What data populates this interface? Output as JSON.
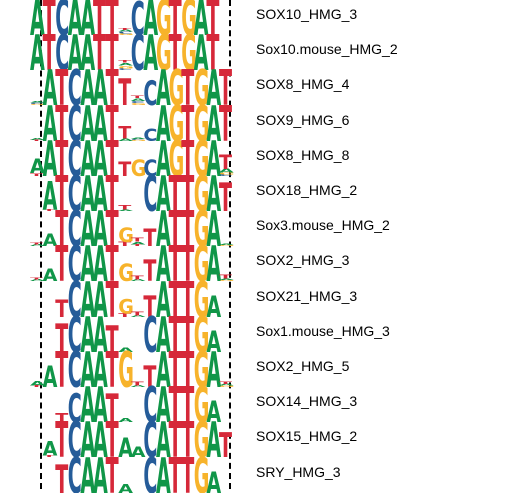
{
  "colors": {
    "A": "#109648",
    "C": "#255c99",
    "G": "#f7b32b",
    "T": "#d62839"
  },
  "motifs": [
    {
      "label": "SOX10_HMG_3",
      "logo": [
        [
          [
            "A",
            1.0
          ]
        ],
        [
          [
            "T",
            1.0
          ]
        ],
        [
          [
            "C",
            1.0
          ]
        ],
        [
          [
            "A",
            1.0
          ]
        ],
        [
          [
            "A",
            1.0
          ]
        ],
        [
          [
            "T",
            1.0
          ]
        ],
        [
          [
            "T",
            1.0
          ]
        ],
        [
          [
            "G",
            0.05
          ],
          [
            "C",
            0.05
          ],
          [
            "A",
            0.05
          ],
          [
            "T",
            0.05
          ]
        ],
        [
          [
            "C",
            0.95
          ]
        ],
        [
          [
            "A",
            1.0
          ]
        ],
        [
          [
            "G",
            1.0
          ]
        ],
        [
          [
            "T",
            1.0
          ]
        ],
        [
          [
            "G",
            1.0
          ]
        ],
        [
          [
            "A",
            1.0
          ]
        ],
        [
          [
            "T",
            1.0
          ]
        ],
        []
      ]
    },
    {
      "label": "Sox10.mouse_HMG_2",
      "logo": [
        [
          [
            "A",
            1.0
          ]
        ],
        [
          [
            "T",
            1.0
          ]
        ],
        [
          [
            "C",
            1.0
          ]
        ],
        [
          [
            "A",
            1.0
          ]
        ],
        [
          [
            "A",
            1.0
          ]
        ],
        [
          [
            "T",
            1.0
          ]
        ],
        [
          [
            "T",
            1.0
          ]
        ],
        [
          [
            "C",
            0.05
          ],
          [
            "G",
            0.08
          ],
          [
            "A",
            0.08
          ],
          [
            "T",
            0.08
          ]
        ],
        [
          [
            "C",
            1.0
          ]
        ],
        [
          [
            "A",
            1.0
          ]
        ],
        [
          [
            "G",
            1.0
          ]
        ],
        [
          [
            "T",
            1.0
          ]
        ],
        [
          [
            "G",
            1.0
          ]
        ],
        [
          [
            "A",
            1.0
          ]
        ],
        [
          [
            "T",
            1.0
          ]
        ],
        []
      ]
    },
    {
      "label": "SOX8_HMG_4",
      "logo": [
        [
          [
            "G",
            0.03
          ],
          [
            "C",
            0.04
          ],
          [
            "A",
            0.03
          ]
        ],
        [
          [
            "A",
            1.0
          ]
        ],
        [
          [
            "T",
            1.0
          ]
        ],
        [
          [
            "C",
            1.0
          ]
        ],
        [
          [
            "A",
            1.0
          ]
        ],
        [
          [
            "A",
            1.0
          ]
        ],
        [
          [
            "T",
            1.0
          ]
        ],
        [
          [
            "T",
            0.75
          ]
        ],
        [
          [
            "G",
            0.06
          ],
          [
            "C",
            0.06
          ],
          [
            "A",
            0.08
          ],
          [
            "T",
            0.08
          ]
        ],
        [
          [
            "C",
            0.7
          ]
        ],
        [
          [
            "A",
            1.0
          ]
        ],
        [
          [
            "G",
            1.0
          ]
        ],
        [
          [
            "T",
            1.0
          ]
        ],
        [
          [
            "G",
            1.0
          ]
        ],
        [
          [
            "A",
            1.0
          ]
        ],
        [
          [
            "T",
            1.0
          ]
        ]
      ]
    },
    {
      "label": "SOX9_HMG_6",
      "logo": [
        [
          [
            "T",
            0.03
          ],
          [
            "A",
            0.06
          ]
        ],
        [
          [
            "A",
            1.0
          ]
        ],
        [
          [
            "T",
            1.0
          ]
        ],
        [
          [
            "C",
            1.0
          ]
        ],
        [
          [
            "A",
            1.0
          ]
        ],
        [
          [
            "A",
            1.0
          ]
        ],
        [
          [
            "T",
            1.0
          ]
        ],
        [
          [
            "A",
            0.07
          ],
          [
            "T",
            0.35
          ]
        ],
        [
          [
            "G",
            0.03
          ],
          [
            "C",
            0.03
          ],
          [
            "A",
            0.03
          ]
        ],
        [
          [
            "C",
            0.35
          ]
        ],
        [
          [
            "A",
            1.0
          ]
        ],
        [
          [
            "G",
            1.0
          ]
        ],
        [
          [
            "T",
            1.0
          ]
        ],
        [
          [
            "G",
            1.0
          ]
        ],
        [
          [
            "A",
            1.0
          ]
        ],
        [
          [
            "T",
            1.0
          ]
        ]
      ]
    },
    {
      "label": "SOX8_HMG_8",
      "logo": [
        [
          [
            "T",
            0.08
          ],
          [
            "A",
            0.4
          ]
        ],
        [
          [
            "A",
            1.0
          ]
        ],
        [
          [
            "T",
            1.0
          ]
        ],
        [
          [
            "C",
            1.0
          ]
        ],
        [
          [
            "A",
            1.0
          ]
        ],
        [
          [
            "A",
            1.0
          ]
        ],
        [
          [
            "T",
            1.0
          ]
        ],
        [
          [
            "T",
            0.4
          ]
        ],
        [
          [
            "G",
            0.45
          ]
        ],
        [
          [
            "C",
            0.45
          ]
        ],
        [
          [
            "A",
            1.0
          ]
        ],
        [
          [
            "G",
            1.0
          ]
        ],
        [
          [
            "T",
            1.0
          ]
        ],
        [
          [
            "G",
            1.0
          ]
        ],
        [
          [
            "A",
            1.0
          ]
        ],
        [
          [
            "C",
            0.05
          ],
          [
            "G",
            0.05
          ],
          [
            "A",
            0.1
          ],
          [
            "T",
            0.4
          ]
        ]
      ]
    },
    {
      "label": "SOX18_HMG_2",
      "logo": [
        [],
        [
          [
            "T",
            0.05
          ],
          [
            "A",
            0.8
          ]
        ],
        [
          [
            "T",
            1.0
          ]
        ],
        [
          [
            "C",
            1.0
          ]
        ],
        [
          [
            "A",
            1.0
          ]
        ],
        [
          [
            "A",
            1.0
          ]
        ],
        [
          [
            "T",
            1.0
          ]
        ],
        [
          [
            "A",
            0.04
          ],
          [
            "T",
            0.12
          ]
        ],
        [],
        [
          [
            "C",
            1.0
          ]
        ],
        [
          [
            "A",
            1.0
          ]
        ],
        [
          [
            "T",
            1.0
          ]
        ],
        [
          [
            "T",
            1.0
          ]
        ],
        [
          [
            "G",
            1.0
          ]
        ],
        [
          [
            "A",
            1.0
          ]
        ],
        [
          [
            "T",
            0.8
          ]
        ]
      ]
    },
    {
      "label": "Sox3.mouse_HMG_2",
      "logo": [
        [
          [
            "A",
            0.05
          ],
          [
            "T",
            0.05
          ]
        ],
        [
          [
            "A",
            0.35
          ]
        ],
        [
          [
            "T",
            1.0
          ]
        ],
        [
          [
            "C",
            1.0
          ]
        ],
        [
          [
            "A",
            1.0
          ]
        ],
        [
          [
            "A",
            1.0
          ]
        ],
        [
          [
            "T",
            1.0
          ]
        ],
        [
          [
            "T",
            0.12
          ],
          [
            "G",
            0.4
          ]
        ],
        [
          [
            "T",
            0.05
          ],
          [
            "A",
            0.08
          ],
          [
            "T",
            0.1
          ]
        ],
        [
          [
            "T",
            0.5
          ]
        ],
        [
          [
            "A",
            1.0
          ]
        ],
        [
          [
            "T",
            1.0
          ]
        ],
        [
          [
            "T",
            1.0
          ]
        ],
        [
          [
            "G",
            1.0
          ]
        ],
        [
          [
            "A",
            1.0
          ]
        ],
        [
          [
            "G",
            0.03
          ],
          [
            "A",
            0.03
          ]
        ]
      ]
    },
    {
      "label": "SOX2_HMG_3",
      "logo": [
        [
          [
            "A",
            0.05
          ],
          [
            "T",
            0.05
          ]
        ],
        [
          [
            "A",
            0.35
          ]
        ],
        [
          [
            "T",
            1.0
          ]
        ],
        [
          [
            "C",
            1.0
          ]
        ],
        [
          [
            "A",
            1.0
          ]
        ],
        [
          [
            "A",
            1.0
          ]
        ],
        [
          [
            "T",
            1.0
          ]
        ],
        [
          [
            "G",
            0.5
          ]
        ],
        [
          [
            "A",
            0.05
          ],
          [
            "T",
            0.1
          ]
        ],
        [
          [
            "T",
            0.6
          ]
        ],
        [
          [
            "A",
            1.0
          ]
        ],
        [
          [
            "T",
            1.0
          ]
        ],
        [
          [
            "T",
            1.0
          ]
        ],
        [
          [
            "G",
            1.0
          ]
        ],
        [
          [
            "A",
            1.0
          ]
        ],
        [
          [
            "G",
            0.03
          ],
          [
            "A",
            0.04
          ],
          [
            "T",
            0.1
          ]
        ]
      ]
    },
    {
      "label": "SOX21_HMG_3",
      "logo": [
        [],
        [],
        [
          [
            "T",
            0.5
          ]
        ],
        [
          [
            "C",
            1.0
          ]
        ],
        [
          [
            "A",
            1.0
          ]
        ],
        [
          [
            "A",
            1.0
          ]
        ],
        [
          [
            "T",
            1.0
          ]
        ],
        [
          [
            "T",
            0.1
          ],
          [
            "G",
            0.4
          ]
        ],
        [
          [
            "A",
            0.05
          ],
          [
            "T",
            0.1
          ]
        ],
        [
          [
            "T",
            0.6
          ]
        ],
        [
          [
            "A",
            1.0
          ]
        ],
        [
          [
            "T",
            1.0
          ]
        ],
        [
          [
            "T",
            1.0
          ]
        ],
        [
          [
            "G",
            1.0
          ]
        ],
        [
          [
            "A",
            0.6
          ]
        ],
        []
      ]
    },
    {
      "label": "Sox1.mouse_HMG_3",
      "logo": [
        [],
        [],
        [
          [
            "T",
            0.8
          ]
        ],
        [
          [
            "C",
            1.0
          ]
        ],
        [
          [
            "A",
            1.0
          ]
        ],
        [
          [
            "A",
            1.0
          ]
        ],
        [
          [
            "T",
            0.75
          ]
        ],
        [
          [
            "A",
            0.12
          ]
        ],
        [],
        [
          [
            "C",
            1.0
          ]
        ],
        [
          [
            "A",
            1.0
          ]
        ],
        [
          [
            "T",
            1.0
          ]
        ],
        [
          [
            "T",
            1.0
          ]
        ],
        [
          [
            "G",
            1.0
          ]
        ],
        [
          [
            "A",
            0.6
          ]
        ],
        []
      ]
    },
    {
      "label": "SOX2_HMG_5",
      "logo": [
        [
          [
            "T",
            0.05
          ],
          [
            "A",
            0.12
          ]
        ],
        [
          [
            "A",
            0.6
          ]
        ],
        [
          [
            "T",
            1.0
          ]
        ],
        [
          [
            "C",
            1.0
          ]
        ],
        [
          [
            "A",
            1.0
          ]
        ],
        [
          [
            "A",
            1.0
          ]
        ],
        [
          [
            "T",
            1.0
          ]
        ],
        [
          [
            "G",
            1.0
          ]
        ],
        [
          [
            "A",
            0.05
          ],
          [
            "T",
            0.1
          ]
        ],
        [
          [
            "T",
            0.6
          ]
        ],
        [
          [
            "A",
            1.0
          ]
        ],
        [
          [
            "T",
            1.0
          ]
        ],
        [
          [
            "T",
            1.0
          ]
        ],
        [
          [
            "G",
            1.0
          ]
        ],
        [
          [
            "A",
            1.0
          ]
        ],
        [
          [
            "G",
            0.04
          ],
          [
            "A",
            0.05
          ],
          [
            "T",
            0.08
          ]
        ]
      ]
    },
    {
      "label": "SOX14_HMG_3",
      "logo": [
        [],
        [],
        [
          [
            "T",
            0.25
          ]
        ],
        [
          [
            "C",
            0.8
          ]
        ],
        [
          [
            "A",
            1.0
          ]
        ],
        [
          [
            "A",
            1.0
          ]
        ],
        [
          [
            "T",
            0.8
          ]
        ],
        [
          [
            "A",
            0.1
          ]
        ],
        [],
        [
          [
            "C",
            1.0
          ]
        ],
        [
          [
            "A",
            1.0
          ]
        ],
        [
          [
            "T",
            1.0
          ]
        ],
        [
          [
            "T",
            1.0
          ]
        ],
        [
          [
            "G",
            1.0
          ]
        ],
        [
          [
            "A",
            0.6
          ]
        ],
        []
      ]
    },
    {
      "label": "SOX15_HMG_2",
      "logo": [
        [],
        [
          [
            "T",
            0.05
          ],
          [
            "A",
            0.4
          ]
        ],
        [
          [
            "T",
            1.0
          ]
        ],
        [
          [
            "C",
            1.0
          ]
        ],
        [
          [
            "A",
            1.0
          ]
        ],
        [
          [
            "A",
            1.0
          ]
        ],
        [
          [
            "T",
            1.0
          ]
        ],
        [
          [
            "A",
            0.55
          ]
        ],
        [
          [
            "A",
            0.3
          ]
        ],
        [
          [
            "C",
            1.0
          ]
        ],
        [
          [
            "A",
            1.0
          ]
        ],
        [
          [
            "T",
            1.0
          ]
        ],
        [
          [
            "T",
            1.0
          ]
        ],
        [
          [
            "G",
            1.0
          ]
        ],
        [
          [
            "A",
            1.0
          ]
        ],
        [
          [
            "T",
            0.7
          ]
        ]
      ]
    },
    {
      "label": "SRY_HMG_3",
      "logo": [
        [],
        [],
        [
          [
            "T",
            0.8
          ]
        ],
        [
          [
            "C",
            1.0
          ]
        ],
        [
          [
            "A",
            1.0
          ]
        ],
        [
          [
            "A",
            1.0
          ]
        ],
        [
          [
            "T",
            1.0
          ]
        ],
        [
          [
            "A",
            0.25
          ]
        ],
        [],
        [
          [
            "C",
            1.0
          ]
        ],
        [
          [
            "A",
            1.0
          ]
        ],
        [
          [
            "T",
            1.0
          ]
        ],
        [
          [
            "T",
            1.0
          ]
        ],
        [
          [
            "G",
            1.0
          ]
        ],
        [
          [
            "A",
            0.6
          ]
        ],
        []
      ]
    }
  ]
}
